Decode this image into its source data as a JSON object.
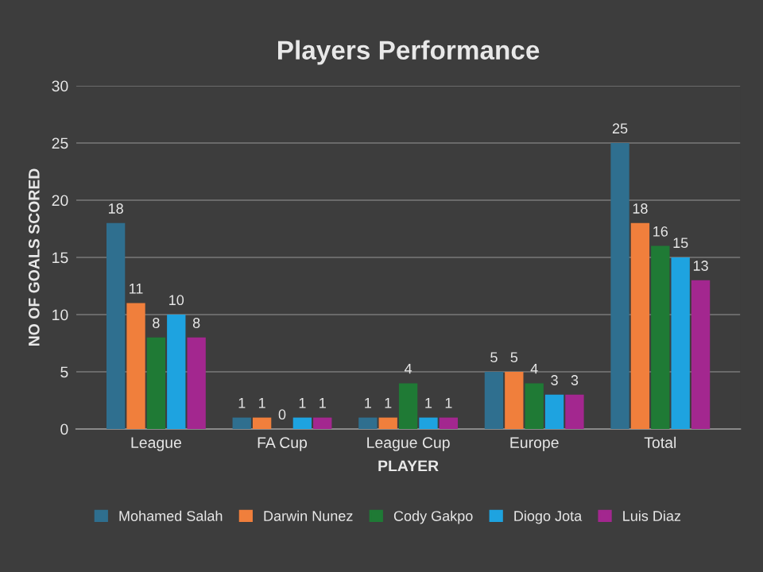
{
  "chart_data": {
    "type": "bar",
    "title": "Players Performance",
    "xlabel": "PLAYER",
    "ylabel": "NO OF GOALS SCORED",
    "categories": [
      "League",
      "FA Cup",
      "League Cup",
      "Europe",
      "Total"
    ],
    "series": [
      {
        "name": "Mohamed Salah",
        "color": "#2f6f8f",
        "values": [
          18,
          1,
          1,
          5,
          25
        ]
      },
      {
        "name": "Darwin Nunez",
        "color": "#f07f3c",
        "values": [
          11,
          1,
          1,
          5,
          18
        ]
      },
      {
        "name": "Cody Gakpo",
        "color": "#1f7a35",
        "values": [
          8,
          0,
          4,
          4,
          16
        ]
      },
      {
        "name": "Diogo Jota",
        "color": "#1ea3e0",
        "values": [
          10,
          1,
          1,
          3,
          15
        ]
      },
      {
        "name": "Luis Diaz",
        "color": "#a3278f",
        "values": [
          8,
          1,
          1,
          3,
          13
        ]
      }
    ],
    "ylim": [
      0,
      30
    ],
    "yticks": [
      0,
      5,
      10,
      15,
      20,
      25,
      30
    ],
    "grid": "y",
    "legend": "bottom",
    "data_labels": true
  }
}
